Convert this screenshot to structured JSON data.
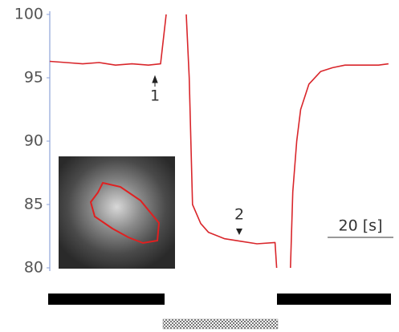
{
  "chart_data": {
    "type": "line",
    "x": [
      0,
      5,
      10,
      15,
      20,
      25,
      30,
      33.7,
      35.4,
      null,
      41.5,
      42.4,
      43.4,
      45.9,
      48.3,
      53.2,
      58,
      63,
      68.5,
      69,
      null,
      73.2,
      73.9,
      75.1,
      76.3,
      78.8,
      82.4,
      86,
      89.8,
      95,
      100,
      103
    ],
    "values": [
      96.3,
      96.2,
      96.1,
      96.2,
      96.0,
      96.1,
      96.0,
      96.1,
      100,
      null,
      100,
      95,
      85,
      83.5,
      82.8,
      82.3,
      82.1,
      81.9,
      82.0,
      80,
      null,
      80,
      86,
      90,
      92.5,
      94.5,
      95.5,
      95.8,
      96,
      96,
      96,
      96.1
    ],
    "color": "#d9262b",
    "xlim": [
      0,
      104
    ],
    "ylim": [
      80,
      100
    ],
    "yticks": [
      80,
      85,
      90,
      95,
      100
    ],
    "annotations": [
      "1",
      "2"
    ],
    "scalebar": {
      "value": 20,
      "label": "20 [s]"
    }
  }
}
